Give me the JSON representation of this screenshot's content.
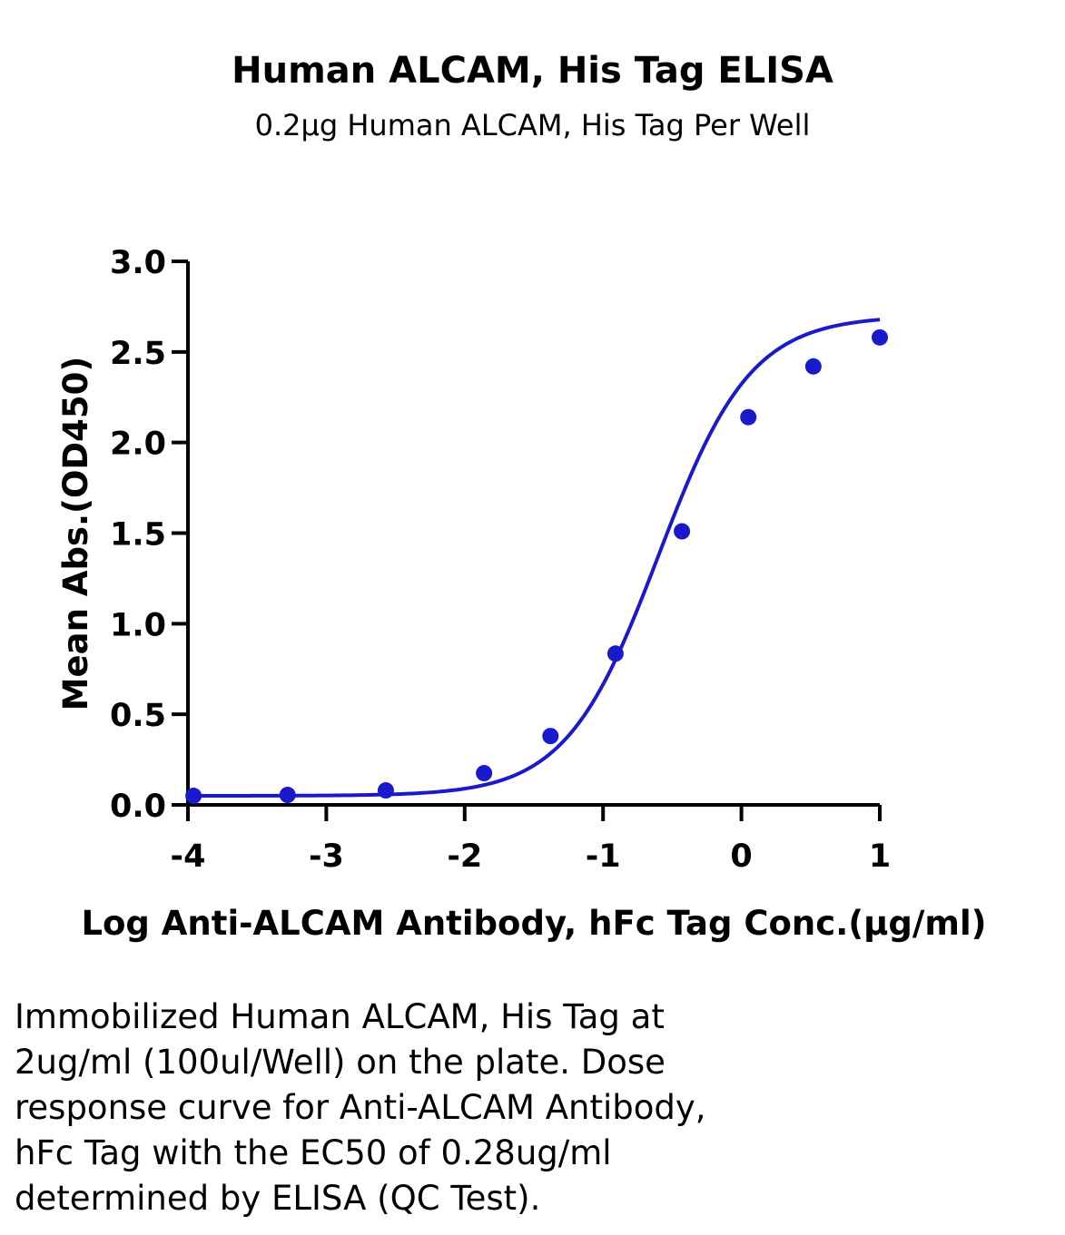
{
  "chart_data": {
    "type": "line",
    "title": "Human ALCAM, His Tag ELISA",
    "subtitle": "0.2μg Human ALCAM, His Tag Per Well",
    "xlabel": "Log Anti-ALCAM Antibody, hFc Tag Conc.(μg/ml)",
    "ylabel": "Mean Abs.(OD450)",
    "xlim": [
      -4,
      1
    ],
    "ylim": [
      0,
      3.0
    ],
    "x_ticks": [
      "-4",
      "-3",
      "-2",
      "-1",
      "0",
      "1"
    ],
    "y_ticks": [
      "0.0",
      "0.5",
      "1.0",
      "1.5",
      "2.0",
      "2.5",
      "3.0"
    ],
    "grid": false,
    "series": [
      {
        "color": "#1a1acd",
        "points": [
          {
            "x": -3.96,
            "y": 0.05
          },
          {
            "x": -3.28,
            "y": 0.055
          },
          {
            "x": -2.57,
            "y": 0.08
          },
          {
            "x": -1.86,
            "y": 0.175
          },
          {
            "x": -1.38,
            "y": 0.38
          },
          {
            "x": -0.91,
            "y": 0.835
          },
          {
            "x": -0.43,
            "y": 1.51
          },
          {
            "x": 0.05,
            "y": 2.14
          },
          {
            "x": 0.52,
            "y": 2.42
          },
          {
            "x": 1.0,
            "y": 2.58
          }
        ],
        "fit": {
          "model": "4PL",
          "bottom": 0.05,
          "top": 2.7,
          "logEC50": -0.6,
          "hill": 1.3
        }
      }
    ]
  },
  "caption": {
    "lines": [
      "Immobilized Human ALCAM, His Tag at",
      "2ug/ml (100ul/Well) on the plate. Dose",
      "response curve for Anti-ALCAM Antibody,",
      "hFc Tag with the EC50 of 0.28ug/ml",
      "determined by ELISA (QC Test)."
    ]
  }
}
